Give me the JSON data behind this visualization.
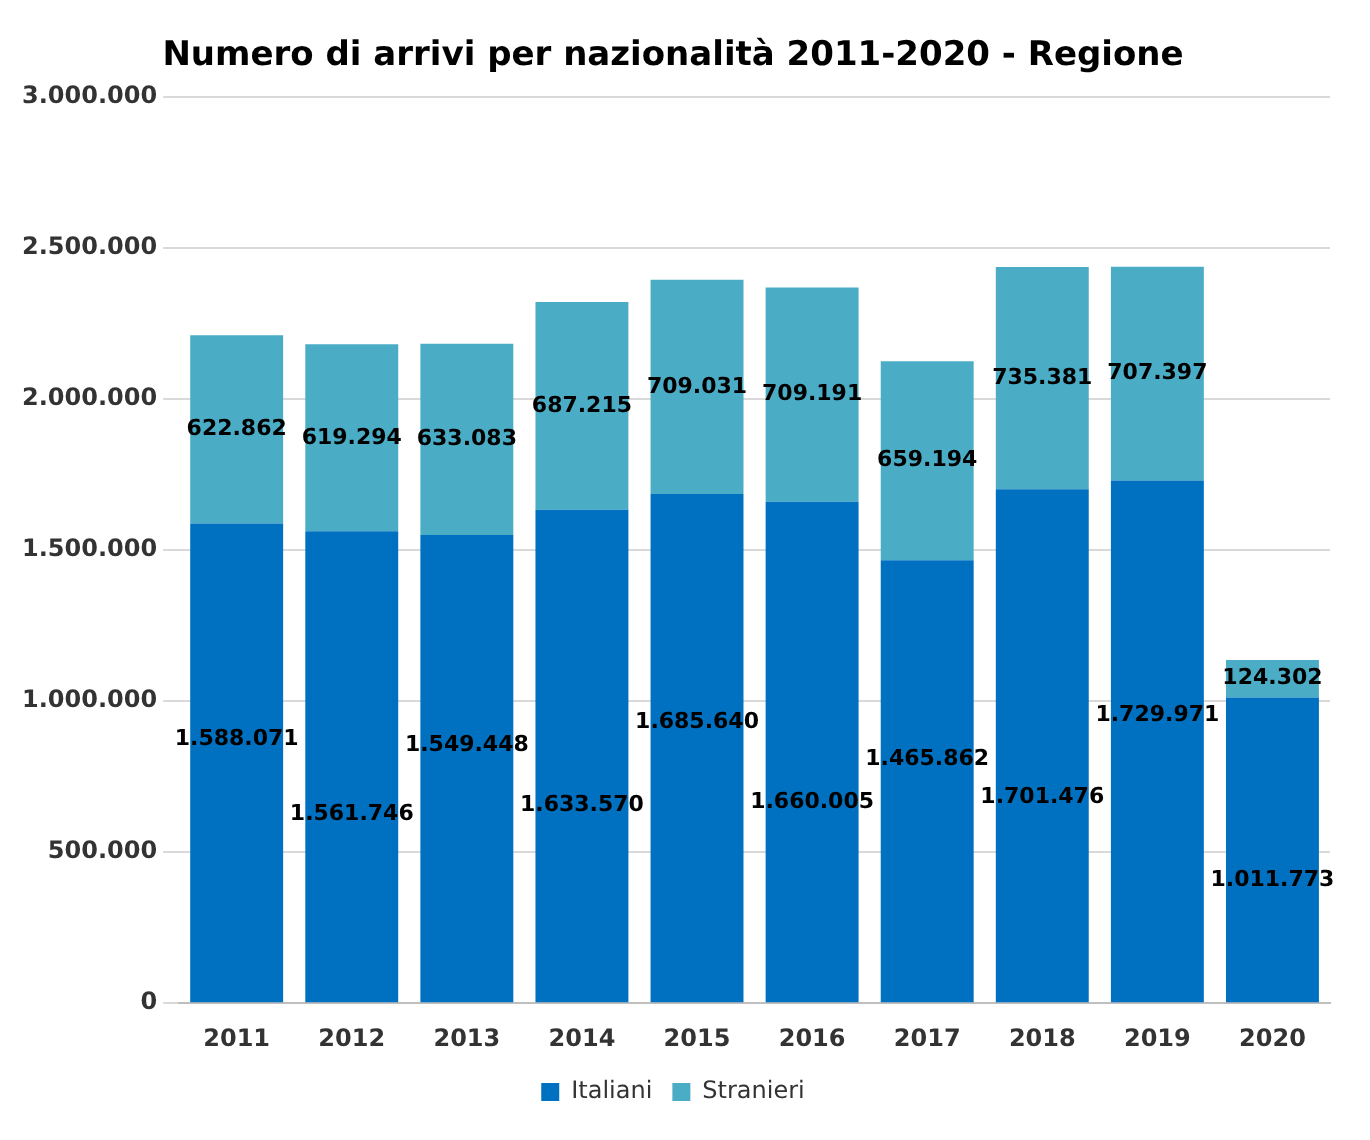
{
  "chart_data": {
    "type": "bar",
    "title": "Numero di arrivi per nazionalità 2011-2020 - Regione",
    "categories": [
      "2011",
      "2012",
      "2013",
      "2014",
      "2015",
      "2016",
      "2017",
      "2018",
      "2019",
      "2020"
    ],
    "stacked": true,
    "series": [
      {
        "name": "Italiani",
        "color": "#0070c0",
        "values": [
          1588071,
          1561746,
          1549448,
          1633570,
          1685640,
          1660005,
          1465862,
          1701476,
          1729971,
          1011773
        ],
        "value_labels": [
          "1.588.071",
          "1.561.746",
          "1.549.448",
          "1.633.570",
          "1.685.640",
          "1.660.005",
          "1.465.862",
          "1.701.476",
          "1.729.971",
          "1.011.773"
        ]
      },
      {
        "name": "Stranieri",
        "color": "#4bacc6",
        "values": [
          622862,
          619294,
          633083,
          687215,
          709031,
          709191,
          659194,
          735381,
          707397,
          124302
        ],
        "value_labels": [
          "622.862",
          "619.294",
          "633.083",
          "687.215",
          "709.031",
          "709.191",
          "659.194",
          "735.381",
          "707.397",
          "124.302"
        ]
      }
    ],
    "ylim": [
      0,
      3000000
    ],
    "yticks": [
      {
        "value": 0,
        "label": "0"
      },
      {
        "value": 500000,
        "label": "500.000"
      },
      {
        "value": 1000000,
        "label": "1.000.000"
      },
      {
        "value": 1500000,
        "label": "1.500.000"
      },
      {
        "value": 2000000,
        "label": "2.000.000"
      },
      {
        "value": 2500000,
        "label": "2.500.000"
      },
      {
        "value": 3000000,
        "label": "3.000.000"
      }
    ],
    "grid": "y",
    "legend": "bottom"
  }
}
